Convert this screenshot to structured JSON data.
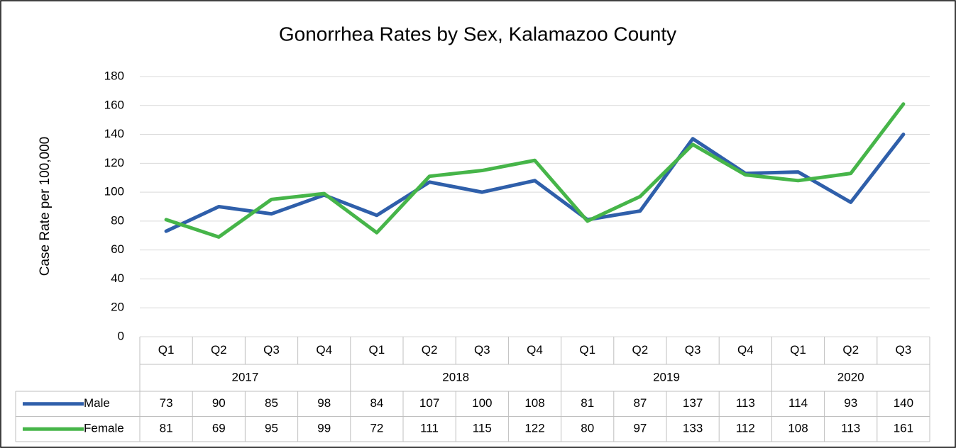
{
  "chart_data": {
    "type": "line",
    "title": "Gonorrhea Rates by Sex, Kalamazoo County",
    "y_label": "Case Rate per 100,000",
    "categories": [
      "Q1",
      "Q2",
      "Q3",
      "Q4",
      "Q1",
      "Q2",
      "Q3",
      "Q4",
      "Q1",
      "Q2",
      "Q3",
      "Q4",
      "Q1",
      "Q2",
      "Q3"
    ],
    "groups": [
      {
        "label": "2017",
        "count": 4
      },
      {
        "label": "2018",
        "count": 4
      },
      {
        "label": "2019",
        "count": 4
      },
      {
        "label": "2020",
        "count": 3
      }
    ],
    "series": [
      {
        "name": "Male",
        "color": "#2f5faa",
        "values": [
          73,
          90,
          85,
          98,
          84,
          107,
          100,
          108,
          81,
          87,
          137,
          113,
          114,
          93,
          140
        ]
      },
      {
        "name": "Female",
        "color": "#46b549",
        "values": [
          81,
          69,
          95,
          99,
          72,
          111,
          115,
          122,
          80,
          97,
          133,
          112,
          108,
          113,
          161
        ]
      }
    ],
    "ylim": [
      0,
      180
    ],
    "yticks": [
      0,
      20,
      40,
      60,
      80,
      100,
      120,
      140,
      160,
      180
    ],
    "grid": true,
    "data_table": true
  }
}
